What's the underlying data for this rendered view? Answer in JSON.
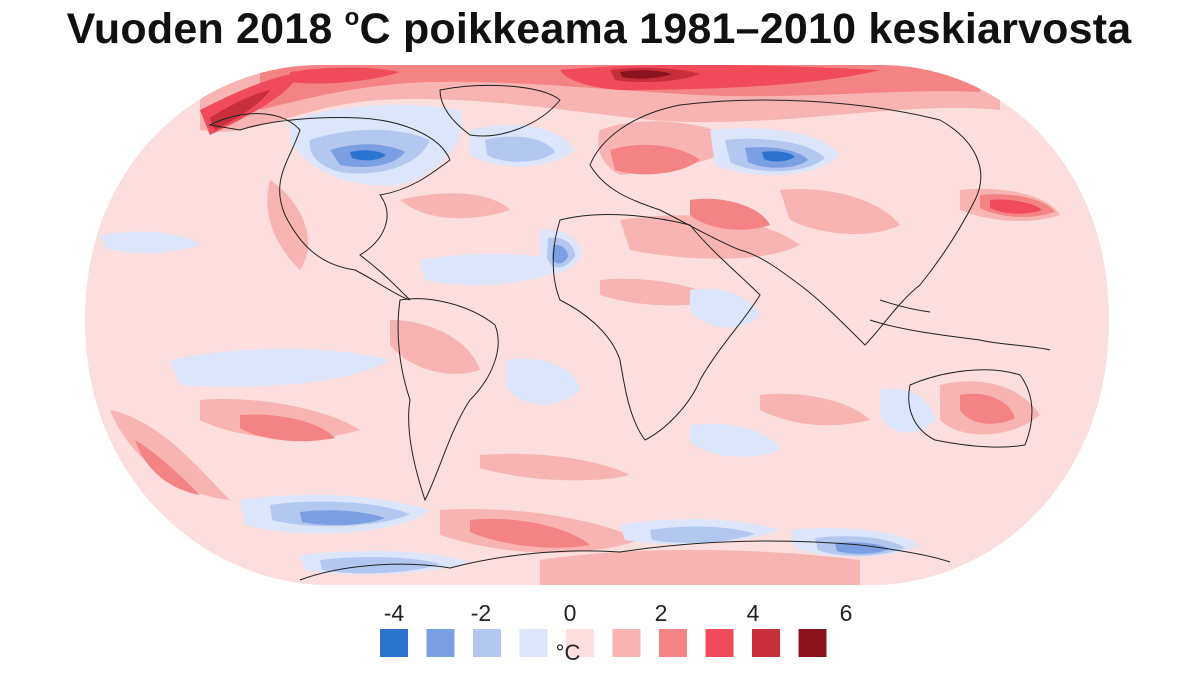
{
  "title": {
    "prefix": "Vuoden 2018 ",
    "degree": "o",
    "suffix": "C poikkeama 1981–2010 keskiarvosta"
  },
  "map": {
    "projection": "robinson",
    "ocean_fill": "#fbdedd",
    "background": "#ffffff",
    "coastline_color": "#222222"
  },
  "legend": {
    "unit": "°C",
    "tick_labels": [
      "-4",
      "-2",
      "0",
      "2",
      "4",
      "6"
    ],
    "bins": [
      {
        "color": "#2b73cf",
        "range": [
          -5,
          -4
        ]
      },
      {
        "color": "#7a9fe2",
        "range": [
          -4,
          -3
        ]
      },
      {
        "color": "#b4c7f1",
        "range": [
          -3,
          -2
        ]
      },
      {
        "color": "#dce5f9",
        "range": [
          -2,
          0
        ]
      },
      {
        "color": "#fbdedd",
        "range": [
          0,
          1
        ]
      },
      {
        "color": "#f7b4b2",
        "range": [
          1,
          2
        ]
      },
      {
        "color": "#f48484",
        "range": [
          2,
          3
        ]
      },
      {
        "color": "#f04b5a",
        "range": [
          3,
          4
        ]
      },
      {
        "color": "#c72f3b",
        "range": [
          4,
          5
        ]
      },
      {
        "color": "#8b141c",
        "range": [
          5,
          6
        ]
      }
    ]
  }
}
